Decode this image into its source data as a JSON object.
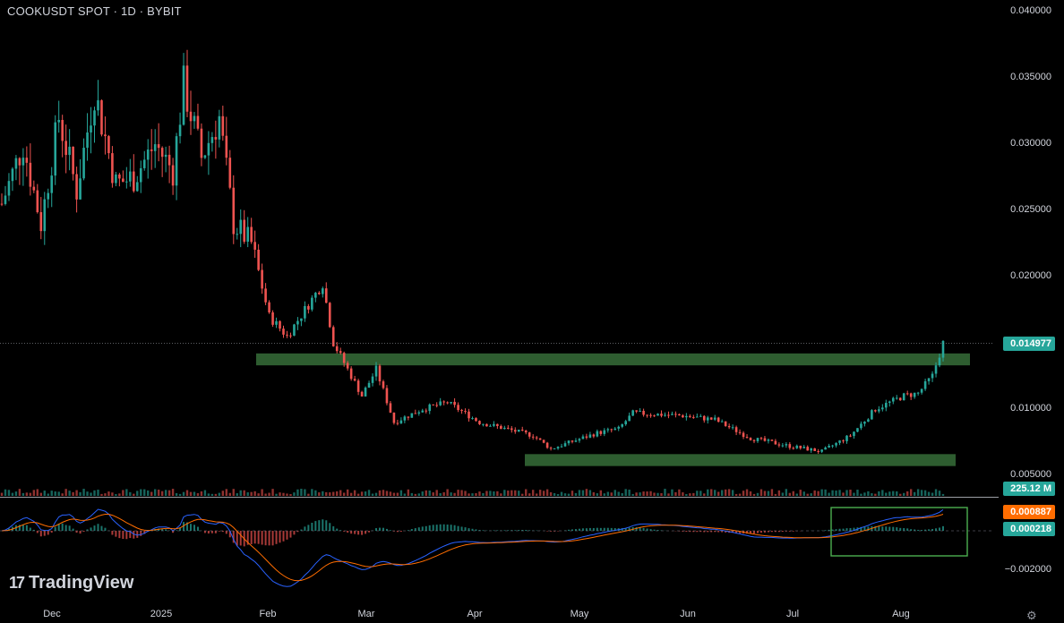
{
  "header": {
    "title": "COOKUSDT SPOT · 1D · BYBIT"
  },
  "branding": {
    "logo_text": "TradingView",
    "logo_mark": "17"
  },
  "price_axis": {
    "ticks": [
      "0.040000",
      "0.035000",
      "0.030000",
      "0.025000",
      "0.020000",
      "0.010000",
      "0.005000"
    ],
    "tick_values": [
      0.04,
      0.035,
      0.03,
      0.025,
      0.02,
      0.01,
      0.005
    ]
  },
  "badges": {
    "last_price": "0.014977",
    "volume": "225.12 M",
    "macd_signal": "0.000887",
    "macd_hist": "0.000218"
  },
  "macd_axis": {
    "tick": "−0.002000"
  },
  "time_axis": {
    "labels": [
      "Dec",
      "2025",
      "Feb",
      "Mar",
      "Apr",
      "May",
      "Jun",
      "Jul",
      "Aug"
    ]
  },
  "colors": {
    "up": "#26a69a",
    "down": "#ef5350",
    "zone": "#2e5d30",
    "macd_line": "#2962ff",
    "signal_line": "#ff6d00",
    "badge_price": "#26a69a",
    "badge_volume": "#26a69a",
    "badge_signal": "#ff6d00",
    "badge_hist": "#26a69a",
    "box": "#4caf50"
  },
  "chart_data": {
    "type": "candlestick",
    "symbol": "COOKUSDT",
    "timeframe": "1D",
    "exchange": "BYBIT",
    "y_range": [
      0.0035,
      0.04
    ],
    "last_price": 0.014977,
    "zones": [
      {
        "low": 0.0133,
        "high": 0.0142
      },
      {
        "low": 0.0057,
        "high": 0.0066
      }
    ],
    "price_path": [
      [
        "2024-11-22",
        0.0255
      ],
      [
        "2024-11-28",
        0.03
      ],
      [
        "2024-12-03",
        0.024
      ],
      [
        "2024-12-08",
        0.032
      ],
      [
        "2024-12-13",
        0.0265
      ],
      [
        "2024-12-18",
        0.034
      ],
      [
        "2024-12-24",
        0.027
      ],
      [
        "2024-12-29",
        0.0275
      ],
      [
        "2025-01-04",
        0.03
      ],
      [
        "2025-01-09",
        0.028
      ],
      [
        "2025-01-12",
        0.0345
      ],
      [
        "2025-01-17",
        0.029
      ],
      [
        "2025-01-22",
        0.032
      ],
      [
        "2025-01-26",
        0.024
      ],
      [
        "2025-01-31",
        0.0225
      ],
      [
        "2025-02-05",
        0.017
      ],
      [
        "2025-02-10",
        0.0155
      ],
      [
        "2025-02-20",
        0.0195
      ],
      [
        "2025-02-23",
        0.015
      ],
      [
        "2025-03-03",
        0.011
      ],
      [
        "2025-03-07",
        0.013
      ],
      [
        "2025-03-12",
        0.009
      ],
      [
        "2025-03-20",
        0.01
      ],
      [
        "2025-03-27",
        0.0105
      ],
      [
        "2025-04-05",
        0.009
      ],
      [
        "2025-04-20",
        0.008
      ],
      [
        "2025-04-25",
        0.007
      ],
      [
        "2025-05-08",
        0.0082
      ],
      [
        "2025-05-14",
        0.0085
      ],
      [
        "2025-05-18",
        0.0097
      ],
      [
        "2025-06-01",
        0.0095
      ],
      [
        "2025-06-10",
        0.0092
      ],
      [
        "2025-06-20",
        0.0078
      ],
      [
        "2025-07-01",
        0.0072
      ],
      [
        "2025-07-10",
        0.0068
      ],
      [
        "2025-07-18",
        0.008
      ],
      [
        "2025-07-25",
        0.01
      ],
      [
        "2025-08-02",
        0.011
      ],
      [
        "2025-08-06",
        0.0112
      ],
      [
        "2025-08-10",
        0.0125
      ],
      [
        "2025-08-13",
        0.01497
      ]
    ],
    "volume": {
      "last": "225.12 M"
    },
    "macd": {
      "signal": 0.000887,
      "histogram": 0.000218,
      "axis_tick": -0.002
    }
  }
}
